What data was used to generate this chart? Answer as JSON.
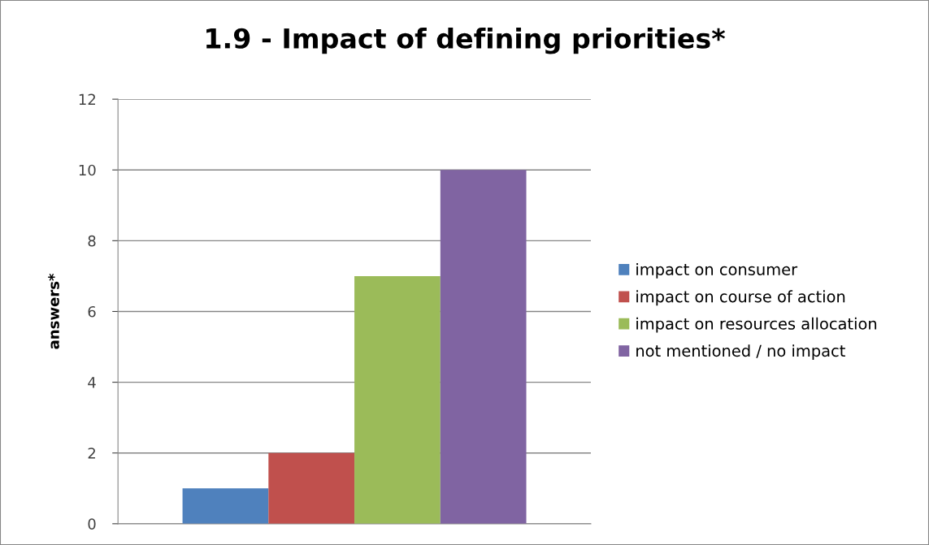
{
  "chart_data": {
    "type": "bar",
    "title": "1.9 - Impact of defining priorities*",
    "ylabel": "answers*",
    "categories": [
      null
    ],
    "series": [
      {
        "name": "impact on consumer",
        "color": "#4f81bd",
        "values": [
          1
        ]
      },
      {
        "name": "impact on course of action",
        "color": "#c0504d",
        "values": [
          2
        ]
      },
      {
        "name": "impact on resources allocation",
        "color": "#9bbb59",
        "values": [
          7
        ]
      },
      {
        "name": "not mentioned / no impact",
        "color": "#8064a2",
        "values": [
          10
        ]
      }
    ],
    "ylim": [
      0,
      12
    ],
    "yticks": [
      0,
      2,
      4,
      6,
      8,
      10,
      12
    ],
    "grid": "y",
    "legend": "right"
  }
}
